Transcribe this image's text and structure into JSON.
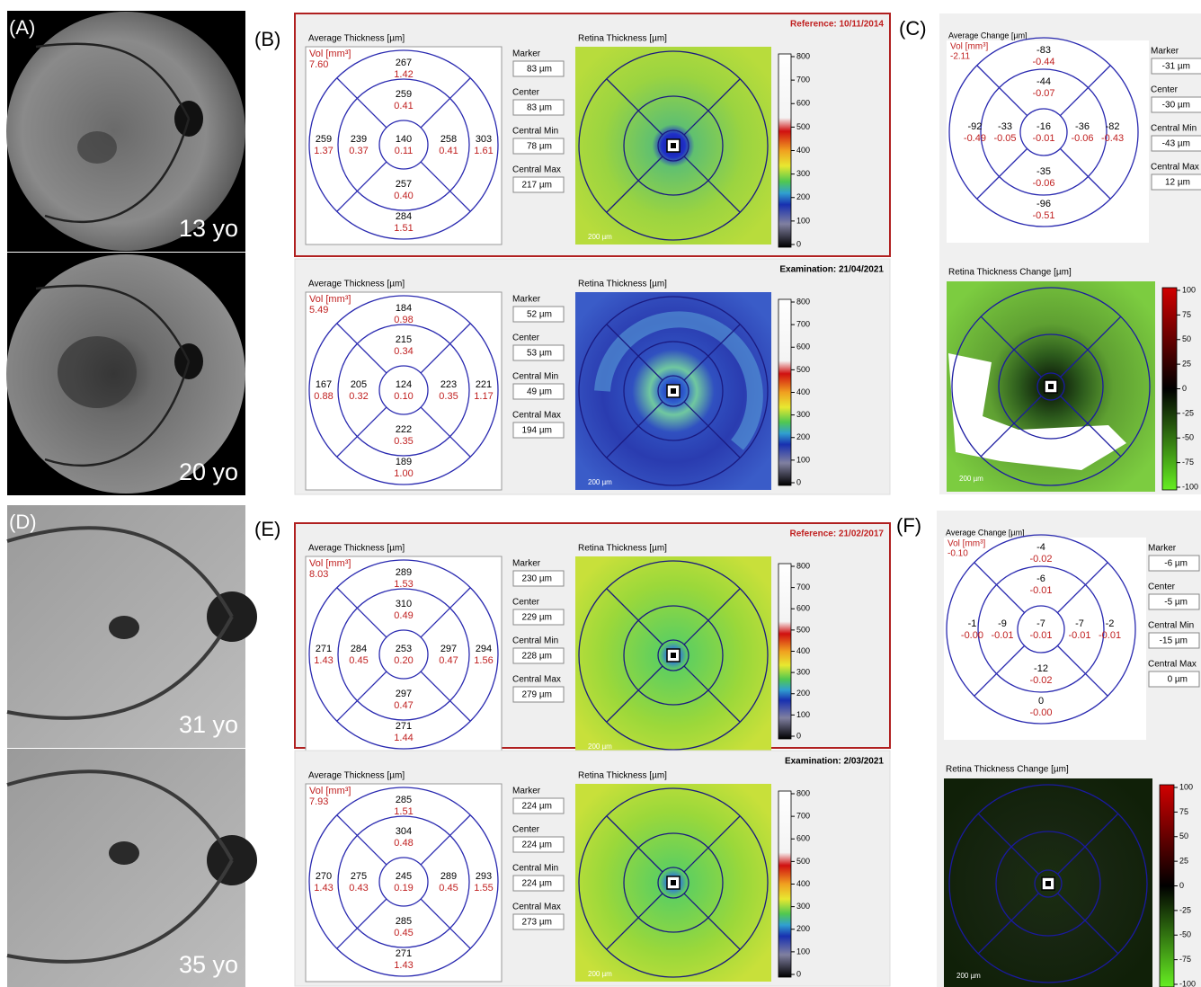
{
  "photo_panels": [
    {
      "label": "(A)",
      "ages": [
        "13 yo",
        "20 yo"
      ]
    },
    {
      "label": "(D)",
      "ages": [
        "31 yo",
        "35 yo"
      ]
    }
  ],
  "thickness_groups": [
    {
      "label": "(B)",
      "maps": [
        {
          "header": "Reference: 10/11/2014",
          "avg_title": "Average Thickness [µm]",
          "vol_label": "Vol [mm³]",
          "vol": "7.60",
          "sectors": [
            [
              "267",
              "1.42"
            ],
            [
              "259",
              "0.41"
            ],
            [
              "259",
              "1.37"
            ],
            [
              "239",
              "0.37"
            ],
            [
              "140",
              "0.11"
            ],
            [
              "258",
              "0.41"
            ],
            [
              "303",
              "1.61"
            ],
            [
              "257",
              "0.40"
            ],
            [
              "284",
              "1.51"
            ]
          ],
          "fields": [
            {
              "label": "Marker",
              "value": "83 µm"
            },
            {
              "label": "Center",
              "value": "83 µm"
            },
            {
              "label": "Central Min",
              "value": "78 µm"
            },
            {
              "label": "Central Max",
              "value": "217 µm"
            }
          ],
          "map_title": "Retina Thickness [µm]",
          "colorbar": [
            "800",
            "700",
            "600",
            "500",
            "400",
            "300",
            "200",
            "100",
            "0"
          ],
          "scale": "200 µm"
        },
        {
          "header": "Examination: 21/04/2021",
          "avg_title": "Average Thickness [µm]",
          "vol_label": "Vol [mm³]",
          "vol": "5.49",
          "sectors": [
            [
              "184",
              "0.98"
            ],
            [
              "215",
              "0.34"
            ],
            [
              "167",
              "0.88"
            ],
            [
              "205",
              "0.32"
            ],
            [
              "124",
              "0.10"
            ],
            [
              "223",
              "0.35"
            ],
            [
              "221",
              "1.17"
            ],
            [
              "222",
              "0.35"
            ],
            [
              "189",
              "1.00"
            ]
          ],
          "fields": [
            {
              "label": "Marker",
              "value": "52 µm"
            },
            {
              "label": "Center",
              "value": "53 µm"
            },
            {
              "label": "Central Min",
              "value": "49 µm"
            },
            {
              "label": "Central Max",
              "value": "194 µm"
            }
          ],
          "map_title": "Retina Thickness [µm]",
          "colorbar": [
            "800",
            "700",
            "600",
            "500",
            "400",
            "300",
            "200",
            "100",
            "0"
          ],
          "scale": "200 µm"
        }
      ]
    },
    {
      "label": "(E)",
      "maps": [
        {
          "header": "Reference: 21/02/2017",
          "avg_title": "Average Thickness [µm]",
          "vol_label": "Vol [mm³]",
          "vol": "8.03",
          "sectors": [
            [
              "289",
              "1.53"
            ],
            [
              "310",
              "0.49"
            ],
            [
              "271",
              "1.43"
            ],
            [
              "284",
              "0.45"
            ],
            [
              "253",
              "0.20"
            ],
            [
              "297",
              "0.47"
            ],
            [
              "294",
              "1.56"
            ],
            [
              "297",
              "0.47"
            ],
            [
              "271",
              "1.44"
            ]
          ],
          "fields": [
            {
              "label": "Marker",
              "value": "230 µm"
            },
            {
              "label": "Center",
              "value": "229 µm"
            },
            {
              "label": "Central Min",
              "value": "228 µm"
            },
            {
              "label": "Central Max",
              "value": "279 µm"
            }
          ],
          "map_title": "Retina Thickness [µm]",
          "colorbar": [
            "800",
            "700",
            "600",
            "500",
            "400",
            "300",
            "200",
            "100",
            "0"
          ],
          "scale": "200 µm"
        },
        {
          "header": "Examination: 2/03/2021",
          "avg_title": "Average Thickness [µm]",
          "vol_label": "Vol [mm³]",
          "vol": "7.93",
          "sectors": [
            [
              "285",
              "1.51"
            ],
            [
              "304",
              "0.48"
            ],
            [
              "270",
              "1.43"
            ],
            [
              "275",
              "0.43"
            ],
            [
              "245",
              "0.19"
            ],
            [
              "289",
              "0.45"
            ],
            [
              "293",
              "1.55"
            ],
            [
              "285",
              "0.45"
            ],
            [
              "271",
              "1.43"
            ]
          ],
          "fields": [
            {
              "label": "Marker",
              "value": "224 µm"
            },
            {
              "label": "Center",
              "value": "224 µm"
            },
            {
              "label": "Central Min",
              "value": "224 µm"
            },
            {
              "label": "Central Max",
              "value": "273 µm"
            }
          ],
          "map_title": "Retina Thickness [µm]",
          "colorbar": [
            "800",
            "700",
            "600",
            "500",
            "400",
            "300",
            "200",
            "100",
            "0"
          ],
          "scale": "200 µm"
        }
      ]
    }
  ],
  "change_panels": [
    {
      "label": "(C)",
      "avg_title": "Average Change [µm]",
      "vol_label": "Vol [mm³]",
      "vol": "-2.11",
      "sectors": [
        [
          "-83",
          "-0.44"
        ],
        [
          "-44",
          "-0.07"
        ],
        [
          "-92",
          "-0.49"
        ],
        [
          "-33",
          "-0.05"
        ],
        [
          "-16",
          "-0.01"
        ],
        [
          "-36",
          "-0.06"
        ],
        [
          "-82",
          "-0.43"
        ],
        [
          "-35",
          "-0.06"
        ],
        [
          "-96",
          "-0.51"
        ]
      ],
      "fields": [
        {
          "label": "Marker",
          "value": "-31 µm"
        },
        {
          "label": "Center",
          "value": "-30 µm"
        },
        {
          "label": "Central Min",
          "value": "-43 µm"
        },
        {
          "label": "Central Max",
          "value": "12 µm"
        }
      ],
      "map_title": "Retina Thickness Change [µm]",
      "colorbar": [
        "100",
        "75",
        "50",
        "25",
        "0",
        "-25",
        "-50",
        "-75",
        "-100"
      ],
      "scale": "200 µm"
    },
    {
      "label": "(F)",
      "avg_title": "Average Change [µm]",
      "vol_label": "Vol [mm³]",
      "vol": "-0.10",
      "sectors": [
        [
          "-4",
          "-0.02"
        ],
        [
          "-6",
          "-0.01"
        ],
        [
          "-1",
          "-0.00"
        ],
        [
          "-9",
          "-0.01"
        ],
        [
          "-7",
          "-0.01"
        ],
        [
          "-7",
          "-0.01"
        ],
        [
          "-2",
          "-0.01"
        ],
        [
          "-12",
          "-0.02"
        ],
        [
          "0",
          "-0.00"
        ]
      ],
      "fields": [
        {
          "label": "Marker",
          "value": "-6 µm"
        },
        {
          "label": "Center",
          "value": "-5 µm"
        },
        {
          "label": "Central Min",
          "value": "-15 µm"
        },
        {
          "label": "Central Max",
          "value": "0 µm"
        }
      ],
      "map_title": "Retina Thickness Change [µm]",
      "colorbar": [
        "100",
        "75",
        "50",
        "25",
        "0",
        "-25",
        "-50",
        "-75",
        "-100"
      ],
      "scale": "200 µm"
    }
  ]
}
